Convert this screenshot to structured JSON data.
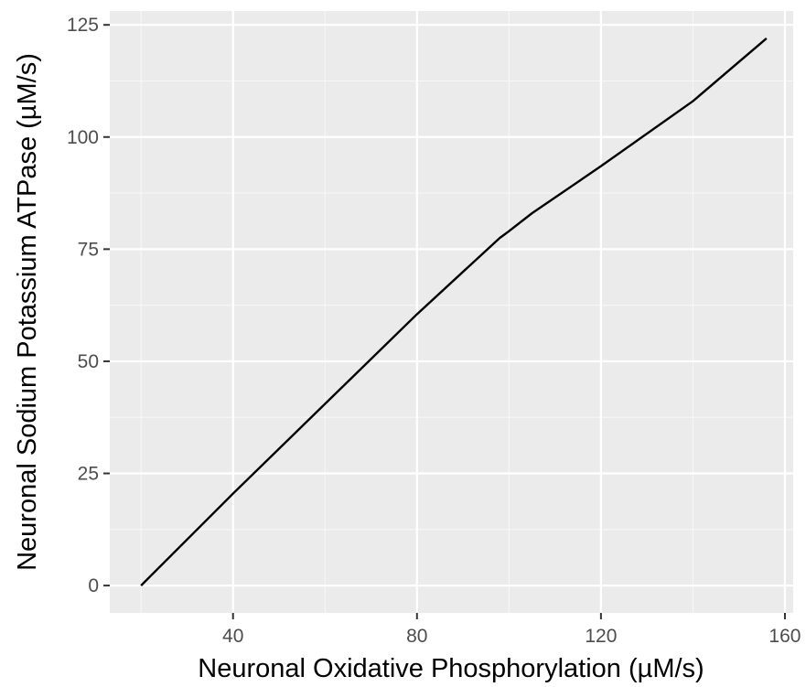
{
  "chart_data": {
    "type": "line",
    "title": "",
    "xlabel": "Neuronal Oxidative Phosphorylation (µM/s)",
    "ylabel": "Neuronal Sodium Potassium ATPase (µM/s)",
    "xlim": [
      13.2,
      161.8
    ],
    "ylim": [
      -6.1,
      128.1
    ],
    "x_ticks": [
      40,
      80,
      120,
      160
    ],
    "y_ticks": [
      0,
      25,
      50,
      75,
      100,
      125
    ],
    "x_tick_labels": [
      "40",
      "80",
      "120",
      "160"
    ],
    "y_tick_labels": [
      "0",
      "25",
      "50",
      "75",
      "100",
      "125"
    ],
    "grid": true,
    "legend": "none",
    "line_color": "#000000",
    "panel_color": "#ebebeb",
    "series": [
      {
        "x": [
          20,
          40,
          60,
          80,
          98,
          100,
          105,
          120,
          140,
          156
        ],
        "y": [
          0,
          20.5,
          40.5,
          60.5,
          77.5,
          79,
          83,
          93.5,
          108,
          122
        ]
      }
    ]
  }
}
